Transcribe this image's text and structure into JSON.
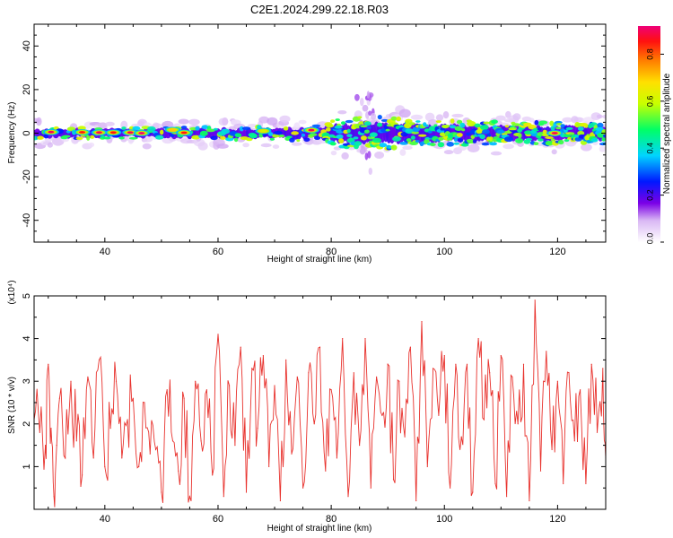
{
  "title": "C2E1.2024.299.22.18.R03",
  "chart_data": [
    {
      "type": "heatmap",
      "xlabel": "Height of straight line (km)",
      "ylabel": "Frequency (Hz)",
      "xlim": [
        27.5,
        128.5
      ],
      "ylim": [
        -50,
        50
      ],
      "xticks": [
        40,
        60,
        80,
        100,
        120
      ],
      "yticks": [
        -40,
        -20,
        0,
        20,
        40
      ],
      "colorbar": {
        "label": "Normalized spectral amplitude",
        "range": [
          0.0,
          0.92
        ],
        "ticks": [
          "0.0",
          "0.2",
          "0.4",
          "0.6",
          "0.8"
        ],
        "tick_values": [
          0.0,
          0.2,
          0.4,
          0.6,
          0.8
        ]
      },
      "band_halfwidth_hz": [
        {
          "x": 28,
          "hz": 3
        },
        {
          "x": 45,
          "hz": 3
        },
        {
          "x": 60,
          "hz": 3.5
        },
        {
          "x": 78,
          "hz": 4
        },
        {
          "x": 80,
          "hz": 7
        },
        {
          "x": 86,
          "hz": 9
        },
        {
          "x": 100,
          "hz": 7
        },
        {
          "x": 115,
          "hz": 6
        },
        {
          "x": 128.5,
          "hz": 6
        }
      ],
      "hotspots": [
        {
          "x": 30.5,
          "y": 0.5,
          "v": 0.9
        },
        {
          "x": 36,
          "y": 0.4,
          "v": 0.85
        },
        {
          "x": 39,
          "y": 0.3,
          "v": 0.9
        },
        {
          "x": 41.5,
          "y": 0.3,
          "v": 0.85
        },
        {
          "x": 44.5,
          "y": 0.3,
          "v": 0.9
        },
        {
          "x": 46.5,
          "y": 0.0,
          "v": 0.92
        },
        {
          "x": 52,
          "y": 1.5,
          "v": 0.7
        },
        {
          "x": 54,
          "y": 0.2,
          "v": 0.85
        },
        {
          "x": 68,
          "y": 1.0,
          "v": 0.6
        },
        {
          "x": 76.5,
          "y": 1.4,
          "v": 0.9
        },
        {
          "x": 119.5,
          "y": 0.0,
          "v": 0.9
        }
      ]
    },
    {
      "type": "line",
      "xlabel": "Height of straight line (km)",
      "ylabel": "SNR (10 * v/v)",
      "multiplier": "(x10⁴)",
      "xlim": [
        27.5,
        128.5
      ],
      "ylim": [
        0,
        5
      ],
      "xticks": [
        40,
        60,
        80,
        100,
        120
      ],
      "yticks": [
        1,
        2,
        3,
        4,
        5
      ],
      "color": "#e8312c",
      "x": [
        27.5,
        28.5,
        29.5,
        30,
        30.5,
        31,
        31.5,
        32,
        33,
        34,
        35,
        36,
        37,
        38,
        39,
        40,
        41,
        42,
        43,
        44,
        45,
        46,
        47,
        48,
        49,
        50,
        51,
        52,
        53,
        54,
        55,
        56,
        57,
        58,
        59,
        60,
        61,
        62,
        63,
        64,
        65,
        66,
        67,
        68,
        69,
        70,
        71,
        72,
        73,
        74,
        75,
        76,
        77,
        78,
        79,
        80,
        81,
        82,
        83,
        84,
        85,
        86,
        87,
        88,
        89,
        90,
        91,
        92,
        93,
        94,
        95,
        96,
        97,
        98,
        99,
        100,
        101,
        102,
        103,
        104,
        105,
        106,
        107,
        108,
        109,
        110,
        111,
        112,
        113,
        114,
        115,
        116,
        117,
        118,
        119,
        120,
        121,
        122,
        123,
        124,
        125,
        126,
        127,
        128,
        128.5
      ],
      "y": [
        2.1,
        1.8,
        1.5,
        3.4,
        1.9,
        0.3,
        1.5,
        2.6,
        1.2,
        3.0,
        1.6,
        0.8,
        3.1,
        1.2,
        3.5,
        1.0,
        1.9,
        3.0,
        1.2,
        2.1,
        2.6,
        1.0,
        2.5,
        1.3,
        1.4,
        0.4,
        2.8,
        1.6,
        0.9,
        2.6,
        0.3,
        3.0,
        1.6,
        2.8,
        0.8,
        4.1,
        0.3,
        2.9,
        1.5,
        3.8,
        0.4,
        3.3,
        1.9,
        3.6,
        1.0,
        2.9,
        0.2,
        3.5,
        1.3,
        3.1,
        0.5,
        3.2,
        2.0,
        3.8,
        0.9,
        2.8,
        1.2,
        4.0,
        0.3,
        3.2,
        1.5,
        4.0,
        0.5,
        3.1,
        2.2,
        3.4,
        0.7,
        3.0,
        1.7,
        3.8,
        0.2,
        4.4,
        1.0,
        3.3,
        2.2,
        3.6,
        0.5,
        3.4,
        1.7,
        3.4,
        0.4,
        4.0,
        2.1,
        3.2,
        0.6,
        3.6,
        0.3,
        3.1,
        2.0,
        3.4,
        0.2,
        4.9,
        0.9,
        3.7,
        1.4,
        3.0,
        0.6,
        3.2,
        1.6,
        2.8,
        0.6,
        3.4,
        1.8,
        3.3,
        1.2
      ]
    }
  ]
}
